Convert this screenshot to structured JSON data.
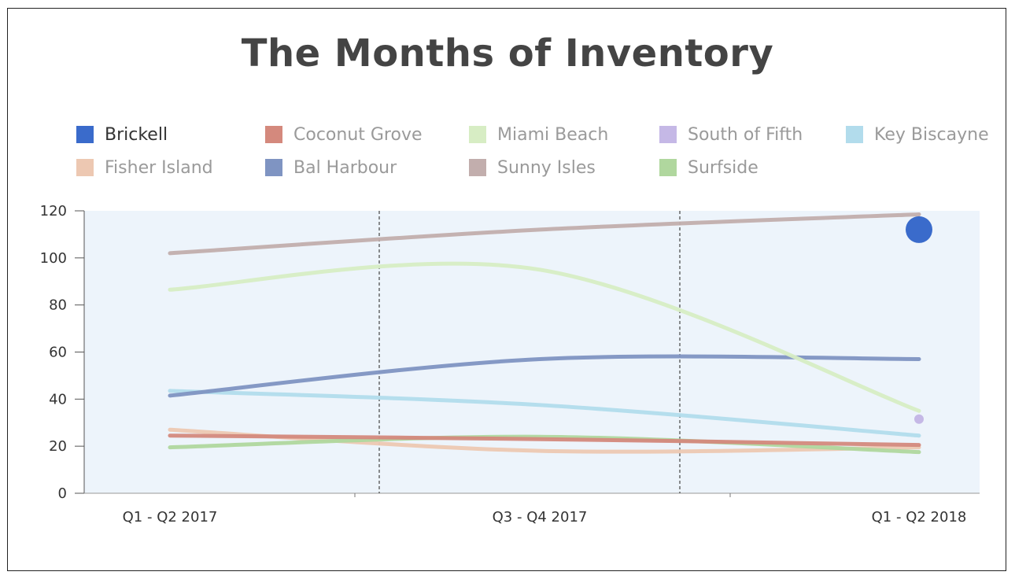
{
  "chart_data": {
    "type": "line",
    "title": "The Months of Inventory",
    "categories": [
      "Q1 - Q2 2017",
      "Q3 - Q4 2017",
      "Q1 - Q2 2018"
    ],
    "ylim": [
      0,
      120
    ],
    "yticks": [
      0,
      20,
      40,
      60,
      80,
      100,
      120
    ],
    "xlabel": "",
    "ylabel": "",
    "grid": false,
    "legend_placement": "top",
    "series": [
      {
        "name": "Brickell",
        "color": "#3a6bcb",
        "values": [
          null,
          null,
          112
        ],
        "marker": "large-dot"
      },
      {
        "name": "Coconut Grove",
        "color": "#d4897d",
        "values": [
          24.5,
          23,
          20.5
        ]
      },
      {
        "name": "Miami Beach",
        "color": "#d7edc4",
        "values": [
          86.5,
          95,
          35
        ]
      },
      {
        "name": "South of Fifth",
        "color": "#c5b8e6",
        "values": [
          null,
          null,
          31.5
        ],
        "marker": "small-dot"
      },
      {
        "name": "Key Biscayne",
        "color": "#b2dcec",
        "values": [
          43.5,
          37.5,
          24.5
        ]
      },
      {
        "name": "Fisher Island",
        "color": "#edc8b2",
        "values": [
          27,
          18,
          19.5
        ]
      },
      {
        "name": "Bal Harbour",
        "color": "#7f94c2",
        "values": [
          41.5,
          57,
          57
        ]
      },
      {
        "name": "Sunny Isles",
        "color": "#c2aead",
        "values": [
          102,
          112,
          118.5
        ]
      },
      {
        "name": "Surfside",
        "color": "#b0d79e",
        "values": [
          19.5,
          24,
          17.5
        ]
      }
    ]
  }
}
